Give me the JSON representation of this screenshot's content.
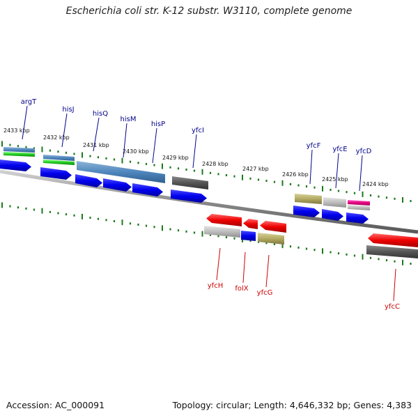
{
  "title": "Escherichia coli str. K-12 substr. W3110, complete genome",
  "footer": {
    "accession": "Accession: AC_000091",
    "summary": "Topology: circular; Length: 4,646,332 bp; Genes: 4,383"
  },
  "scale": {
    "labels": [
      "2433 kbp",
      "2432 kbp",
      "2431 kbp",
      "2430 kbp",
      "2429 kbp",
      "2428 kbp",
      "2427 kbp",
      "2426 kbp",
      "2425 kbp",
      "2424 kbp"
    ]
  },
  "colors": {
    "forward_label": "#00008b",
    "reverse_label": "#cc0000",
    "backbone": "#8a8a8a",
    "tick": "#1a7a1a"
  },
  "forward_genes": [
    {
      "name": "argT"
    },
    {
      "name": "hisJ"
    },
    {
      "name": "hisQ"
    },
    {
      "name": "hisM"
    },
    {
      "name": "hisP"
    },
    {
      "name": "yfcI"
    },
    {
      "name": "yfcF"
    },
    {
      "name": "yfcE"
    },
    {
      "name": "yfcD"
    }
  ],
  "reverse_genes": [
    {
      "name": "yfcH"
    },
    {
      "name": "folX"
    },
    {
      "name": "yfcG"
    },
    {
      "name": "yfcC"
    }
  ]
}
